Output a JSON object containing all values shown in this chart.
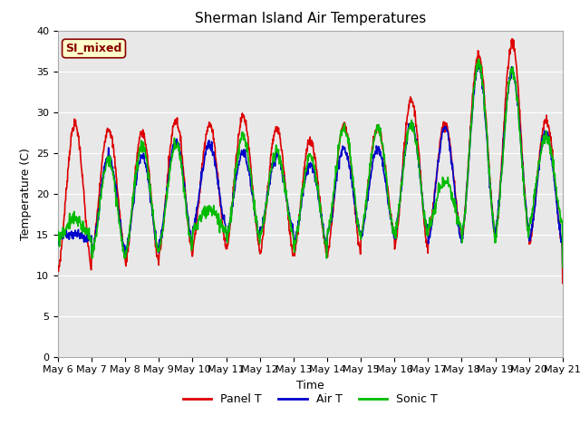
{
  "title": "Sherman Island Air Temperatures",
  "xlabel": "Time",
  "ylabel": "Temperature (C)",
  "ylim": [
    0,
    40
  ],
  "yticks": [
    0,
    5,
    10,
    15,
    20,
    25,
    30,
    35,
    40
  ],
  "xtick_labels": [
    "May 6",
    "May 7",
    "May 8",
    "May 9",
    "May 10",
    "May 11",
    "May 12",
    "May 13",
    "May 14",
    "May 15",
    "May 16",
    "May 17",
    "May 18",
    "May 19",
    "May 20",
    "May 21"
  ],
  "panel_color": "#dd0000",
  "air_color": "#0000cc",
  "sonic_color": "#00bb00",
  "bg_color": "#e8e8e8",
  "plot_bg": "#e8e8e8",
  "annotation_text": "SI_mixed",
  "annotation_bg": "#ffffcc",
  "annotation_fg": "#880000",
  "legend_labels": [
    "Panel T",
    "Air T",
    "Sonic T"
  ],
  "title_fontsize": 11,
  "axis_fontsize": 9,
  "tick_fontsize": 8,
  "legend_fontsize": 9,
  "linewidth": 1.2
}
